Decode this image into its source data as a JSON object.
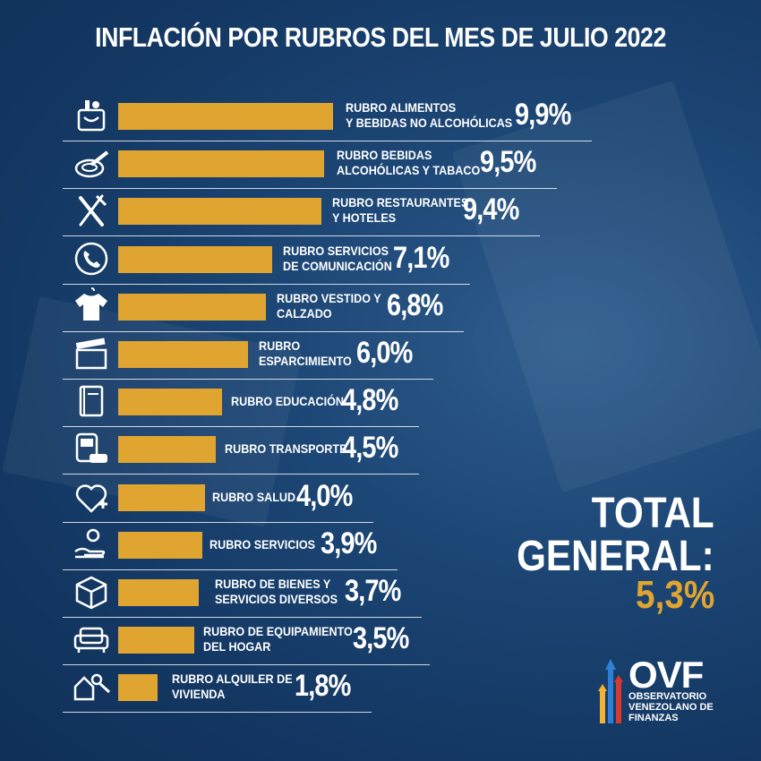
{
  "title": "INFLACIÓN POR RUBROS DEL MES DE JULIO 2022",
  "chart_data": {
    "type": "bar",
    "title": "INFLACIÓN POR RUBROS DEL MES DE JULIO 2022",
    "orientation": "horizontal",
    "categories": [
      "RUBRO ALIMENTOS Y BEBIDAS NO ALCOHÓLICAS",
      "RUBRO BEBIDAS ALCOHÓLICAS Y TABACO",
      "RUBRO RESTAURANTES Y HOTELES",
      "RUBRO SERVICIOS DE COMUNICACIÓN",
      "RUBRO VESTIDO Y CALZADO",
      "RUBRO ESPARCIMIENTO",
      "RUBRO EDUCACIÓN",
      "RUBRO TRANSPORTE",
      "RUBRO SALUD",
      "RUBRO SERVICIOS",
      "RUBRO DE BIENES Y SERVICIOS DIVERSOS",
      "RUBRO DE EQUIPAMIENTO DEL HOGAR",
      "RUBRO ALQUILER DE VIVIENDA"
    ],
    "values": [
      9.9,
      9.5,
      9.4,
      7.1,
      6.8,
      6.0,
      4.8,
      4.5,
      4.0,
      3.9,
      3.7,
      3.5,
      1.8
    ],
    "labels": [
      "RUBRO ALIMENTOS\nY BEBIDAS NO ALCOHÓLICAS",
      "RUBRO BEBIDAS\nALCOHÓLICAS Y TABACO",
      "RUBRO RESTAURANTES\nY HOTELES",
      "RUBRO SERVICIOS\nDE COMUNICACIÓN",
      "RUBRO VESTIDO Y\nCALZADO",
      "RUBRO\nESPARCIMIENTO",
      "RUBRO EDUCACIÓN",
      "RUBRO TRANSPORTE",
      "RUBRO SALUD",
      "RUBRO SERVICIOS",
      "RUBRO DE BIENES Y\nSERVICIOS DIVERSOS",
      "RUBRO DE EQUIPAMIENTO\nDEL HOGAR",
      "RUBRO ALQUILER DE\nVIVIENDA"
    ],
    "value_labels": [
      "9,9%",
      "9,5%",
      "9,4%",
      "7,1%",
      "6,8%",
      "6,0%",
      "4,8%",
      "4,5%",
      "4,0%",
      "3,9%",
      "3,7%",
      "3,5%",
      "1,8%"
    ],
    "icons": [
      "grocery-basket-icon",
      "ashtray-icon",
      "fork-knife-icon",
      "phone-icon",
      "shirt-icon",
      "clapperboard-icon",
      "book-icon",
      "bus-car-icon",
      "heart-plus-icon",
      "hand-gear-icon",
      "box-icon",
      "sofa-icon",
      "house-key-icon"
    ],
    "bar_color": "#e0a431"
  },
  "total": {
    "label": "TOTAL\nGENERAL:",
    "value": "5,3%"
  },
  "logo": {
    "name": "OVF",
    "subtitle": "OBSERVATORIO\nVENEZOLANO DE\nFINANZAS"
  }
}
